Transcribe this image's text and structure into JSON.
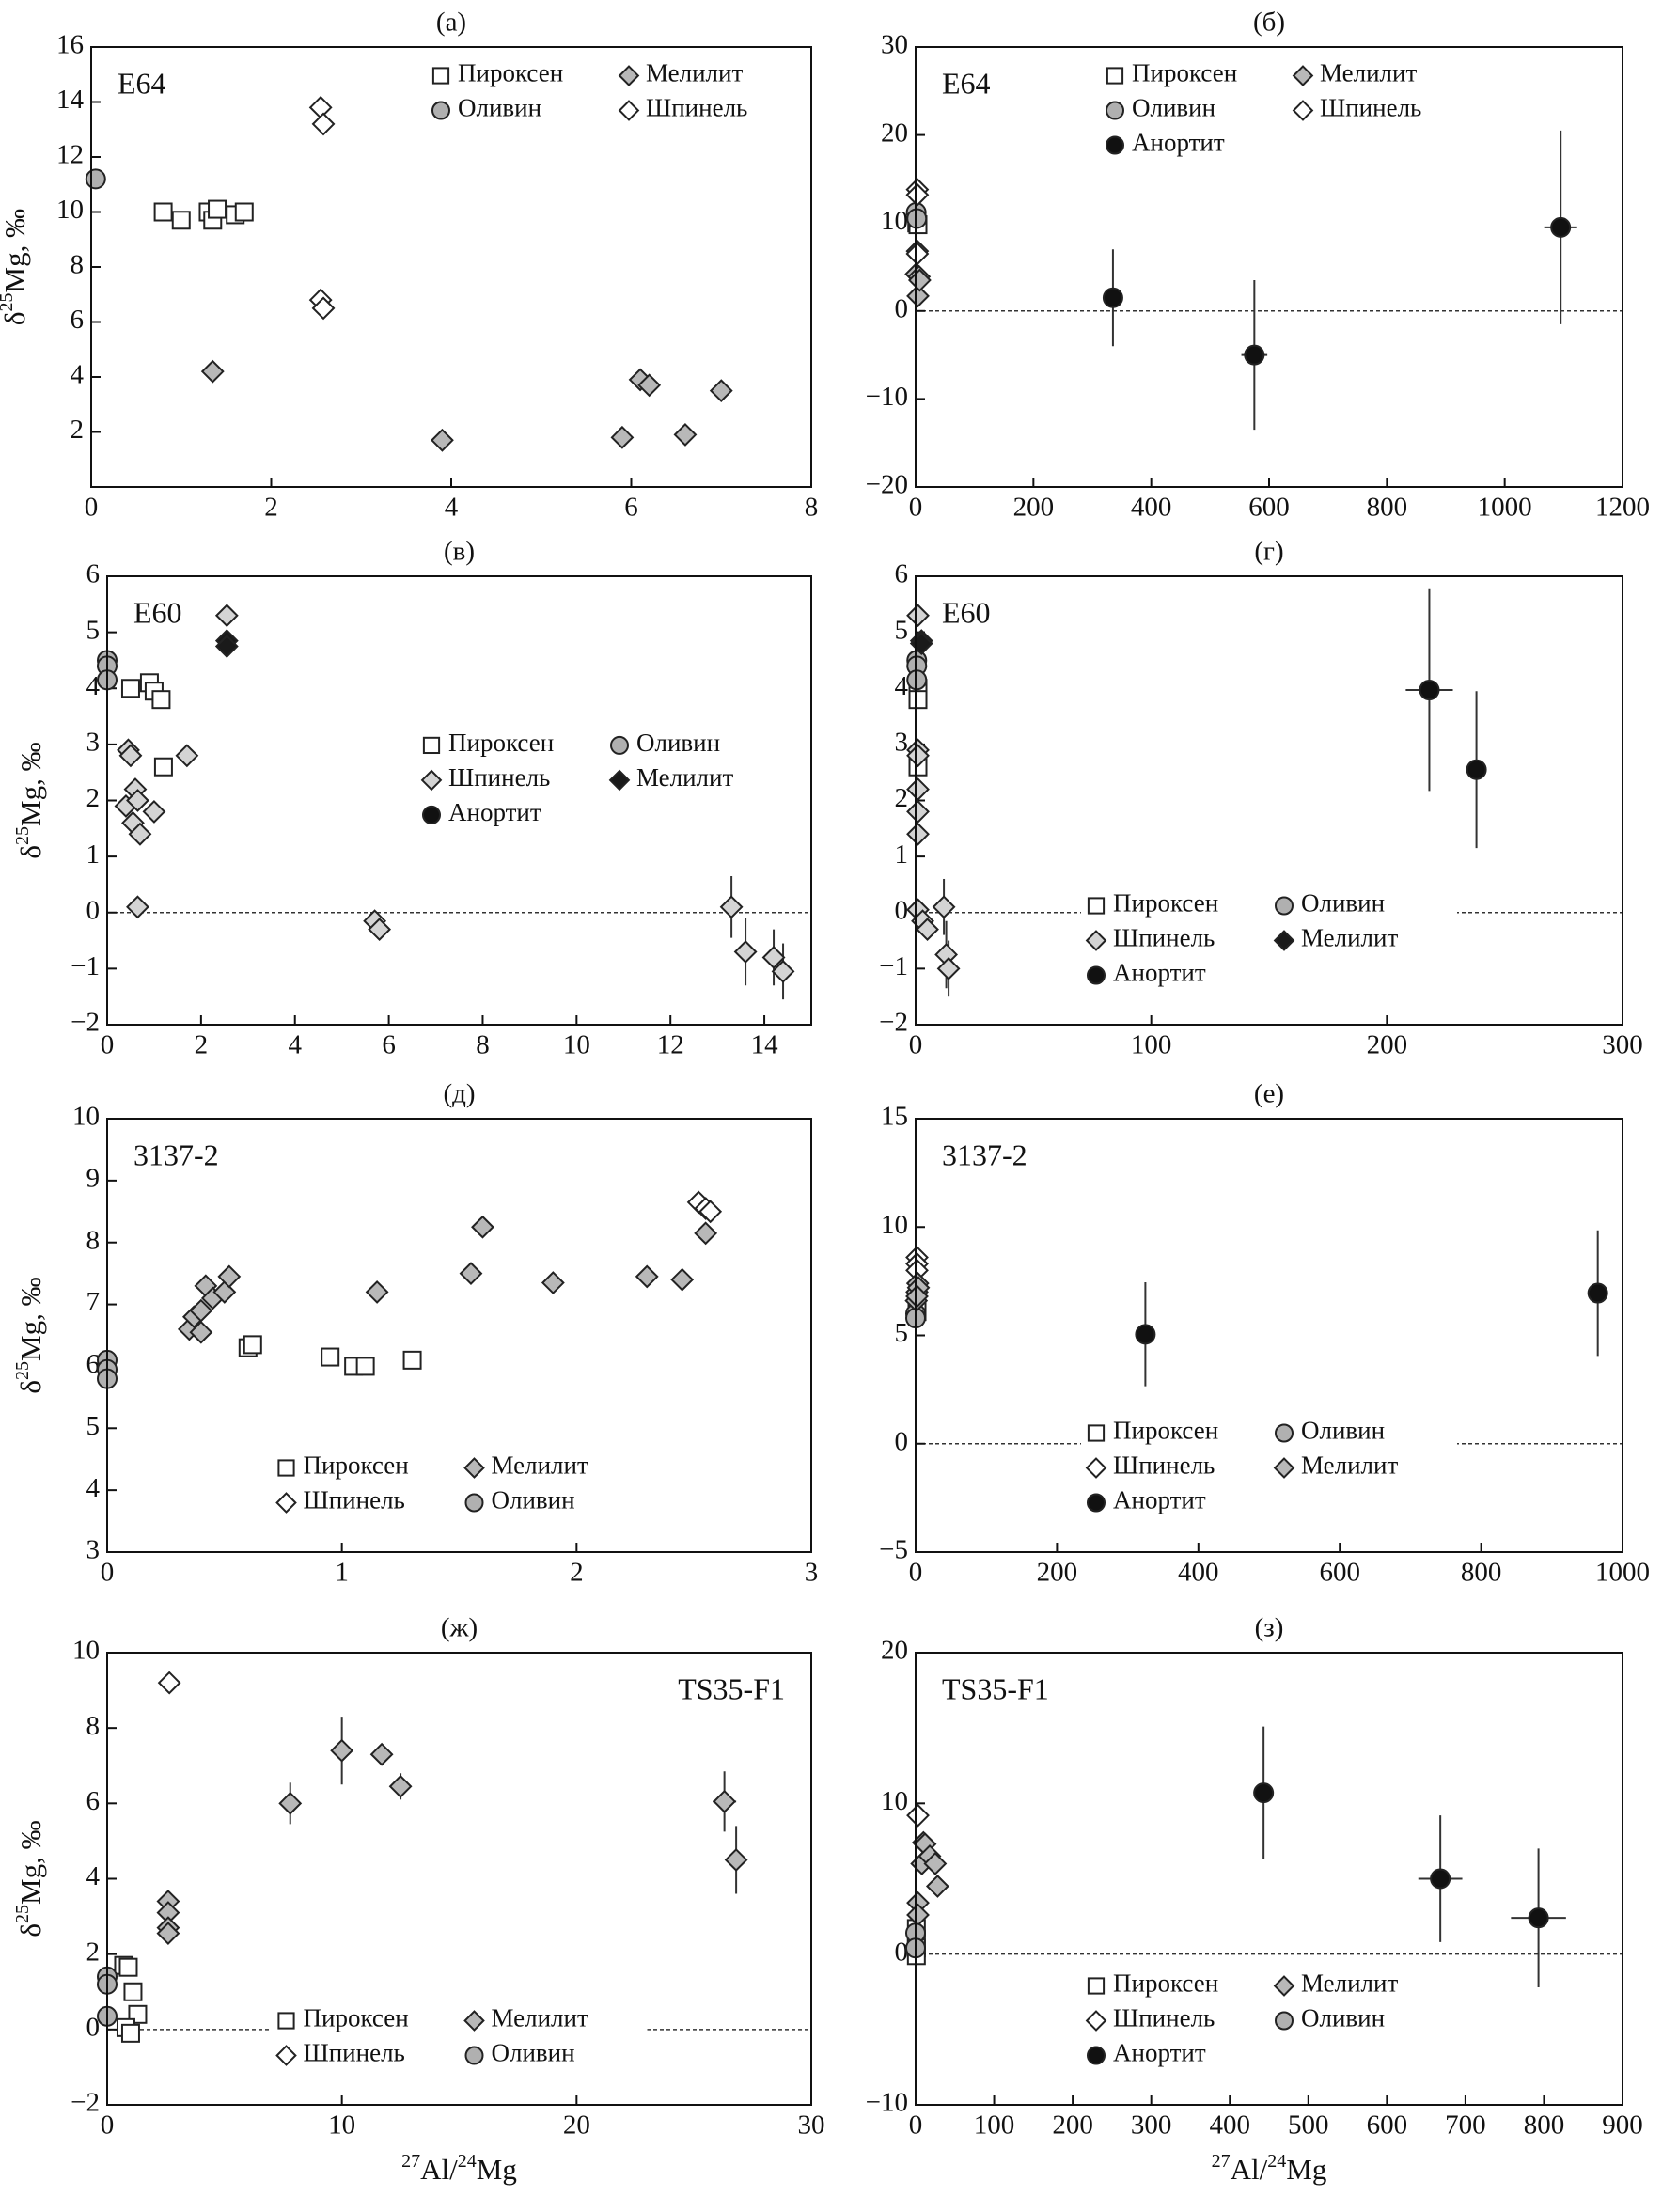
{
  "chart_data": [
    {
      "type": "scatter",
      "title": "(а)",
      "annotation": "E64",
      "annotation_position": "upper left",
      "y_label": [
        "δ",
        "25",
        "Mg, ‰"
      ],
      "xlim": [
        0,
        8
      ],
      "xticks": [
        0,
        2,
        4,
        6,
        8
      ],
      "ylim": [
        0,
        16
      ],
      "yticks": [
        2,
        4,
        6,
        8,
        10,
        12,
        14,
        16
      ],
      "zero_line": false,
      "legend": "upper right",
      "series": [
        {
          "name": "Пироксен",
          "marker": "square",
          "color": "#ffffff",
          "x": [
            0.8,
            1.0,
            1.3,
            1.35,
            1.4,
            1.6,
            1.7
          ],
          "values": [
            10,
            9.7,
            10,
            9.7,
            10.1,
            9.9,
            10
          ]
        },
        {
          "name": "Мелилит",
          "marker": "diamond",
          "color": "#b8b8b8",
          "x": [
            1.35,
            3.9,
            5.9,
            6.1,
            6.2,
            6.6,
            7.0
          ],
          "values": [
            4.2,
            1.7,
            1.8,
            3.9,
            3.7,
            1.9,
            3.5
          ]
        },
        {
          "name": "Оливин",
          "marker": "circle",
          "color": "#b0b0b0",
          "x": [
            0.05
          ],
          "values": [
            11.2
          ]
        },
        {
          "name": "Шпинель",
          "marker": "diamond",
          "color": "#ffffff",
          "x": [
            2.55,
            2.58,
            2.55,
            2.58
          ],
          "values": [
            13.8,
            13.2,
            6.8,
            6.5
          ]
        }
      ]
    },
    {
      "type": "scatter",
      "title": "(б)",
      "annotation": "E64",
      "annotation_position": "upper left",
      "xlim": [
        0,
        1200
      ],
      "xticks": [
        0,
        200,
        400,
        600,
        800,
        1000,
        1200
      ],
      "ylim": [
        -20,
        30
      ],
      "yticks": [
        {
          "value": -20,
          "label": "−20"
        },
        {
          "value": -10,
          "label": "−10"
        },
        0,
        10,
        20,
        30
      ],
      "zero_line": true,
      "legend": "upper center",
      "series": [
        {
          "name": "Пироксен",
          "marker": "square",
          "color": "#ffffff",
          "x": [
            2,
            4
          ],
          "values": [
            10,
            9.8
          ]
        },
        {
          "name": "Мелилит",
          "marker": "diamond",
          "color": "#b8b8b8",
          "x": [
            1,
            4,
            6,
            7
          ],
          "values": [
            4.2,
            1.7,
            3.9,
            3.5
          ]
        },
        {
          "name": "Оливин",
          "marker": "circle",
          "color": "#b0b0b0",
          "x": [
            1,
            2
          ],
          "values": [
            11.2,
            10.5
          ]
        },
        {
          "name": "Шпинель",
          "marker": "diamond",
          "color": "#ffffff",
          "x": [
            3,
            3,
            3,
            3
          ],
          "values": [
            13.8,
            13.2,
            6.8,
            6.5
          ]
        },
        {
          "name": "Анортит",
          "marker": "circle",
          "color": "#111111",
          "x": [
            335,
            575,
            1095
          ],
          "values": [
            1.5,
            -5,
            9.5
          ],
          "x_errors": [
            8,
            22,
            28
          ],
          "y_errors": [
            5.5,
            8.5,
            11
          ]
        }
      ]
    },
    {
      "type": "scatter",
      "title": "(в)",
      "annotation": "E60",
      "annotation_position": "upper left",
      "y_label": [
        "δ",
        "25",
        "Mg, ‰"
      ],
      "xlim": [
        0,
        15
      ],
      "xticks": [
        0,
        2,
        4,
        6,
        8,
        10,
        12,
        14
      ],
      "ylim": [
        -2,
        6
      ],
      "yticks": [
        {
          "value": -2,
          "label": "−2"
        },
        {
          "value": -1,
          "label": "−1"
        },
        0,
        1,
        2,
        3,
        4,
        5,
        6
      ],
      "zero_line": true,
      "legend": "center right",
      "series": [
        {
          "name": "Пироксен",
          "marker": "square",
          "color": "#ffffff",
          "x": [
            0.5,
            0.9,
            1.0,
            1.15,
            1.2
          ],
          "values": [
            4.0,
            4.1,
            3.95,
            3.8,
            2.6
          ]
        },
        {
          "name": "Оливин",
          "marker": "circle",
          "color": "#b0b0b0",
          "x": [
            0,
            0,
            0
          ],
          "values": [
            4.5,
            4.4,
            4.15
          ]
        },
        {
          "name": "Шпинель",
          "marker": "diamond",
          "color": "#d4d4d4",
          "x": [
            0.45,
            0.5,
            0.4,
            0.55,
            0.6,
            0.65,
            0.7,
            1.0,
            1.7,
            2.55,
            0.65,
            5.7,
            5.8,
            13.3,
            13.6,
            14.2,
            14.4
          ],
          "values": [
            2.9,
            2.8,
            1.9,
            1.6,
            2.2,
            2.0,
            1.4,
            1.8,
            2.8,
            5.3,
            0.1,
            -0.15,
            -0.3,
            0.1,
            -0.7,
            -0.8,
            -1.05
          ],
          "y_errors": [
            null,
            null,
            null,
            null,
            null,
            null,
            null,
            null,
            null,
            null,
            null,
            null,
            null,
            0.55,
            0.6,
            0.5,
            0.5
          ]
        },
        {
          "name": "Мелилит",
          "marker": "diamond",
          "color": "#1a1a1a",
          "x": [
            2.55,
            2.55
          ],
          "values": [
            4.85,
            4.75
          ]
        },
        {
          "name": "Анортит",
          "marker": "circle",
          "color": "#111111",
          "x": [],
          "values": []
        }
      ]
    },
    {
      "type": "scatter",
      "title": "(г)",
      "annotation": "E60",
      "annotation_position": "upper left",
      "xlim": [
        0,
        300
      ],
      "xticks": [
        0,
        100,
        200,
        300
      ],
      "ylim": [
        -2,
        6
      ],
      "yticks": [
        {
          "value": -2,
          "label": "−2"
        },
        {
          "value": -1,
          "label": "−1"
        },
        0,
        1,
        2,
        3,
        4,
        5,
        6
      ],
      "zero_line": true,
      "legend": "lower center",
      "series": [
        {
          "name": "Пироксен",
          "marker": "square",
          "color": "#ffffff",
          "x": [
            1,
            1,
            1
          ],
          "values": [
            4.0,
            3.8,
            2.6
          ]
        },
        {
          "name": "Оливин",
          "marker": "circle",
          "color": "#b0b0b0",
          "x": [
            0.5,
            0.5,
            0.5
          ],
          "values": [
            4.5,
            4.4,
            4.15
          ]
        },
        {
          "name": "Шпинель",
          "marker": "diamond",
          "color": "#d4d4d4",
          "x": [
            1,
            1,
            1,
            1,
            1,
            1,
            1,
            3,
            5,
            12,
            13,
            14
          ],
          "values": [
            5.3,
            2.9,
            2.8,
            2.2,
            1.8,
            1.4,
            0.05,
            -0.15,
            -0.3,
            0.1,
            -0.75,
            -1.0
          ],
          "y_errors": [
            null,
            null,
            null,
            null,
            null,
            null,
            null,
            null,
            null,
            0.5,
            0.6,
            0.5
          ]
        },
        {
          "name": "Мелилит",
          "marker": "diamond",
          "color": "#1a1a1a",
          "x": [
            2.5,
            2.5
          ],
          "values": [
            4.85,
            4.8
          ]
        },
        {
          "name": "Анортит",
          "marker": "circle",
          "color": "#111111",
          "x": [
            218,
            238
          ],
          "values": [
            3.97,
            2.55
          ],
          "x_errors": [
            10,
            3
          ],
          "y_errors": [
            1.8,
            1.4
          ]
        }
      ]
    },
    {
      "type": "scatter",
      "title": "(д)",
      "annotation": "3137-2",
      "annotation_position": "upper left",
      "y_label": [
        "δ",
        "25",
        "Mg, ‰"
      ],
      "xlim": [
        0,
        3
      ],
      "xticks": [
        0,
        1,
        2,
        3
      ],
      "ylim": [
        3,
        10
      ],
      "yticks": [
        3,
        4,
        5,
        6,
        7,
        8,
        9,
        10
      ],
      "zero_line": false,
      "legend": "lower center",
      "series": [
        {
          "name": "Пироксен",
          "marker": "square",
          "color": "#ffffff",
          "x": [
            0.6,
            0.62,
            0.95,
            1.05,
            1.1,
            1.3
          ],
          "values": [
            6.3,
            6.35,
            6.15,
            6.0,
            6.0,
            6.1
          ]
        },
        {
          "name": "Мелилит",
          "marker": "diamond",
          "color": "#b8b8b8",
          "x": [
            0.35,
            0.4,
            0.37,
            0.4,
            0.42,
            0.45,
            0.5,
            0.52,
            1.15,
            1.55,
            1.6,
            1.9,
            2.3,
            2.45,
            2.55
          ],
          "values": [
            6.6,
            6.55,
            6.8,
            6.9,
            7.3,
            7.1,
            7.2,
            7.45,
            7.2,
            7.5,
            8.25,
            7.35,
            7.45,
            7.4,
            8.15
          ]
        },
        {
          "name": "Шпинель",
          "marker": "diamond",
          "color": "#ffffff",
          "x": [
            2.52,
            2.55,
            2.57
          ],
          "values": [
            8.65,
            8.55,
            8.5
          ]
        },
        {
          "name": "Оливин",
          "marker": "circle",
          "color": "#b0b0b0",
          "x": [
            0,
            0,
            0
          ],
          "values": [
            6.1,
            5.95,
            5.8
          ]
        }
      ]
    },
    {
      "type": "scatter",
      "title": "(е)",
      "annotation": "3137-2",
      "annotation_position": "upper left",
      "xlim": [
        0,
        1000
      ],
      "xticks": [
        0,
        200,
        400,
        600,
        800,
        1000
      ],
      "ylim": [
        -5,
        15
      ],
      "yticks": [
        {
          "value": -5,
          "label": "−5"
        },
        0,
        5,
        10,
        15
      ],
      "zero_line": true,
      "legend": "lower center",
      "series": [
        {
          "name": "Пироксен",
          "marker": "square",
          "color": "#ffffff",
          "x": [
            2,
            2
          ],
          "values": [
            6.3,
            6.1
          ]
        },
        {
          "name": "Оливин",
          "marker": "circle",
          "color": "#b0b0b0",
          "x": [
            0,
            0
          ],
          "values": [
            6.0,
            5.8
          ]
        },
        {
          "name": "Шпинель",
          "marker": "diamond",
          "color": "#ffffff",
          "x": [
            2,
            2,
            2
          ],
          "values": [
            8.6,
            8.3,
            8.0
          ]
        },
        {
          "name": "Мелилит",
          "marker": "diamond",
          "color": "#b8b8b8",
          "x": [
            1,
            2,
            3,
            4,
            2
          ],
          "values": [
            6.6,
            7.0,
            7.4,
            7.2,
            6.8
          ]
        },
        {
          "name": "Анортит",
          "marker": "circle",
          "color": "#111111",
          "x": [
            325,
            965
          ],
          "values": [
            5.05,
            6.95
          ],
          "x_errors": [
            8,
            14
          ],
          "y_errors": [
            2.4,
            2.9
          ]
        }
      ]
    },
    {
      "type": "scatter",
      "title": "(ж)",
      "annotation": "TS35-F1",
      "annotation_position": "upper right",
      "y_label": [
        "δ",
        "25",
        "Mg, ‰"
      ],
      "x_label": [
        "27",
        "Al/",
        "24",
        "Mg"
      ],
      "xlim": [
        0,
        30
      ],
      "xticks": [
        0,
        10,
        20,
        30
      ],
      "ylim": [
        -2,
        10
      ],
      "yticks": [
        {
          "value": -2,
          "label": "−2"
        },
        0,
        2,
        4,
        6,
        8,
        10
      ],
      "zero_line": true,
      "legend": "lower center",
      "series": [
        {
          "name": "Пироксен",
          "marker": "square",
          "color": "#ffffff",
          "x": [
            0.7,
            0.9,
            1.1,
            1.3,
            0.8,
            1.0
          ],
          "values": [
            1.7,
            1.65,
            1.0,
            0.4,
            0.05,
            -0.1
          ]
        },
        {
          "name": "Мелилит",
          "marker": "diamond",
          "color": "#b8b8b8",
          "x": [
            2.6,
            2.6,
            2.6,
            2.6,
            7.8,
            10,
            11.7,
            12.5,
            26.3,
            26.8
          ],
          "values": [
            3.4,
            3.1,
            2.7,
            2.55,
            6.0,
            7.4,
            7.3,
            6.45,
            6.05,
            4.5
          ],
          "x_errors": [
            null,
            null,
            null,
            null,
            null,
            null,
            null,
            null,
            0.5,
            null
          ],
          "y_errors": [
            null,
            null,
            null,
            null,
            0.55,
            0.9,
            null,
            0.35,
            0.8,
            0.9
          ]
        },
        {
          "name": "Шпинель",
          "marker": "diamond",
          "color": "#ffffff",
          "x": [
            2.65
          ],
          "values": [
            9.2
          ]
        },
        {
          "name": "Оливин",
          "marker": "circle",
          "color": "#b0b0b0",
          "x": [
            0,
            0,
            0
          ],
          "values": [
            1.4,
            1.2,
            0.35
          ]
        }
      ]
    },
    {
      "type": "scatter",
      "title": "(з)",
      "annotation": "TS35-F1",
      "annotation_position": "upper left",
      "x_label": [
        "27",
        "Al/",
        "24",
        "Mg"
      ],
      "xlim": [
        0,
        900
      ],
      "xticks": [
        0,
        100,
        200,
        300,
        400,
        500,
        600,
        700,
        800,
        900
      ],
      "ylim": [
        -10,
        20
      ],
      "yticks": [
        {
          "value": -10,
          "label": "−10"
        },
        0,
        10,
        20
      ],
      "zero_line": true,
      "legend": "lower center",
      "series": [
        {
          "name": "Пироксен",
          "marker": "square",
          "color": "#ffffff",
          "x": [
            1,
            1,
            1,
            1
          ],
          "values": [
            1.7,
            1.0,
            0.4,
            -0.1
          ]
        },
        {
          "name": "Мелилит",
          "marker": "diamond",
          "color": "#b8b8b8",
          "x": [
            3,
            3,
            8,
            10,
            12,
            18,
            25,
            28
          ],
          "values": [
            3.4,
            2.6,
            6.0,
            7.4,
            7.3,
            6.5,
            6.0,
            4.5
          ]
        },
        {
          "name": "Шпинель",
          "marker": "diamond",
          "color": "#ffffff",
          "x": [
            3
          ],
          "values": [
            9.2
          ]
        },
        {
          "name": "Оливин",
          "marker": "circle",
          "color": "#b0b0b0",
          "x": [
            0,
            0
          ],
          "values": [
            1.4,
            0.4
          ]
        },
        {
          "name": "Анортит",
          "marker": "circle",
          "color": "#111111",
          "x": [
            443,
            668,
            793
          ],
          "values": [
            10.7,
            5.0,
            2.4
          ],
          "x_errors": [
            12,
            28,
            35
          ],
          "y_errors": [
            4.4,
            4.2,
            4.6
          ]
        }
      ]
    }
  ]
}
